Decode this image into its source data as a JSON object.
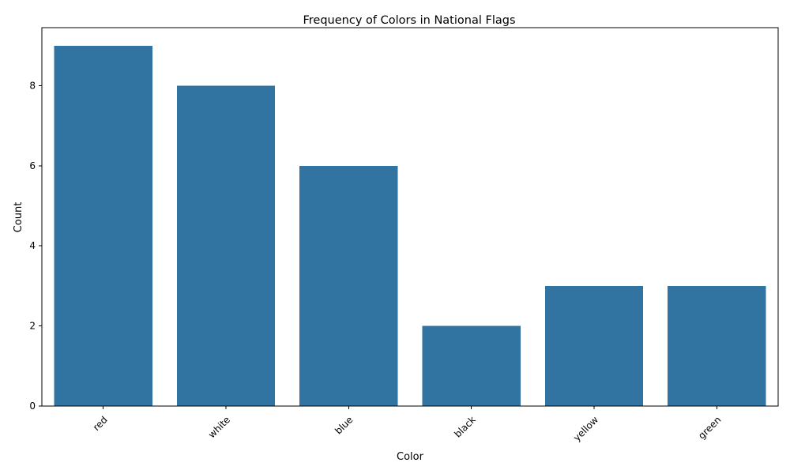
{
  "chart_data": {
    "type": "bar",
    "title": "Frequency of Colors in National Flags",
    "xlabel": "Color",
    "ylabel": "Count",
    "categories": [
      "red",
      "white",
      "blue",
      "black",
      "yellow",
      "green"
    ],
    "values": [
      9,
      8,
      6,
      2,
      3,
      3
    ],
    "ylim": [
      0,
      9.45
    ],
    "yticks": [
      0,
      2,
      4,
      6,
      8
    ],
    "xtick_rotation": 45,
    "bar_color": "#3274a1",
    "grid": false,
    "legend": "none"
  }
}
